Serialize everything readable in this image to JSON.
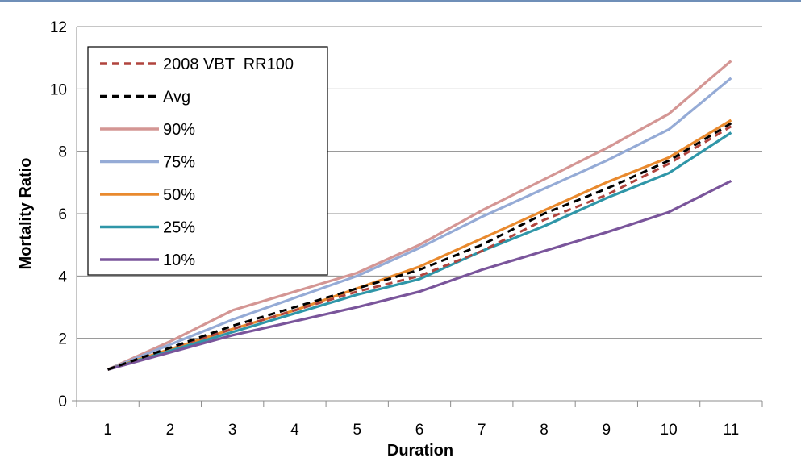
{
  "chart_data": {
    "type": "line",
    "title": "",
    "xlabel": "Duration",
    "ylabel": "Mortality Ratio",
    "x": [
      1,
      2,
      3,
      4,
      5,
      6,
      7,
      8,
      9,
      10,
      11
    ],
    "xlim": [
      0.5,
      11.5
    ],
    "ylim": [
      0,
      12
    ],
    "yticks": [
      0,
      2,
      4,
      6,
      8,
      10,
      12
    ],
    "grid": "horizontal",
    "legend_position": "top-left",
    "series": [
      {
        "name": "2008 VBT  RR100",
        "color": "#b0443d",
        "dashed": true,
        "values": [
          1.0,
          1.7,
          2.3,
          2.9,
          3.5,
          4.0,
          4.8,
          5.8,
          6.6,
          7.6,
          8.8
        ]
      },
      {
        "name": "Avg",
        "color": "#000000",
        "dashed": true,
        "values": [
          1.0,
          1.7,
          2.4,
          3.0,
          3.6,
          4.2,
          5.0,
          6.0,
          6.8,
          7.7,
          8.9
        ]
      },
      {
        "name": "90%",
        "color": "#d49694",
        "dashed": false,
        "values": [
          1.0,
          1.9,
          2.9,
          3.5,
          4.1,
          5.0,
          6.1,
          7.1,
          8.1,
          9.2,
          10.9
        ]
      },
      {
        "name": "75%",
        "color": "#95abd6",
        "dashed": false,
        "values": [
          1.0,
          1.8,
          2.6,
          3.3,
          4.0,
          4.9,
          5.9,
          6.8,
          7.7,
          8.7,
          10.35
        ]
      },
      {
        "name": "50%",
        "color": "#e98a2e",
        "dashed": false,
        "values": [
          1.0,
          1.65,
          2.3,
          2.9,
          3.6,
          4.3,
          5.2,
          6.1,
          7.0,
          7.8,
          9.0
        ]
      },
      {
        "name": "25%",
        "color": "#2f96a8",
        "dashed": false,
        "values": [
          1.0,
          1.6,
          2.2,
          2.8,
          3.4,
          3.9,
          4.8,
          5.6,
          6.5,
          7.3,
          8.6
        ]
      },
      {
        "name": "10%",
        "color": "#7a559b",
        "dashed": false,
        "values": [
          1.0,
          1.55,
          2.1,
          2.55,
          3.0,
          3.5,
          4.2,
          4.8,
          5.4,
          6.05,
          7.05
        ]
      }
    ]
  }
}
